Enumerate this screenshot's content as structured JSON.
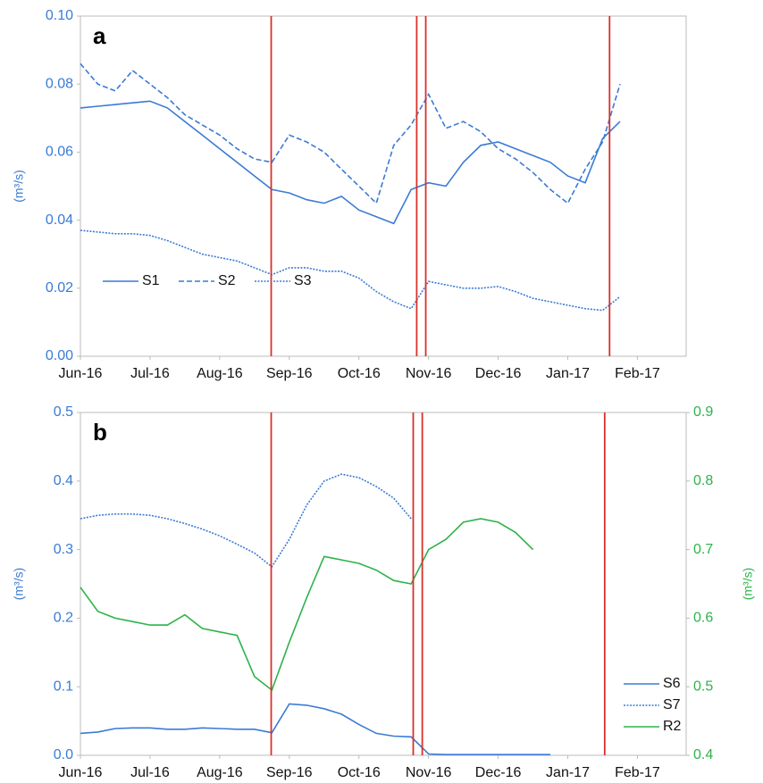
{
  "chart_data": [
    {
      "type": "line",
      "panel_label": "a",
      "ylabel": "(m³/s)",
      "xlim": [
        0,
        8.7
      ],
      "xticks": [
        {
          "value": 0,
          "label": "Jun-16"
        },
        {
          "value": 1,
          "label": "Jul-16"
        },
        {
          "value": 2,
          "label": "Aug-16"
        },
        {
          "value": 3,
          "label": "Sep-16"
        },
        {
          "value": 4,
          "label": "Oct-16"
        },
        {
          "value": 5,
          "label": "Nov-16"
        },
        {
          "value": 6,
          "label": "Dec-16"
        },
        {
          "value": 7,
          "label": "Jan-17"
        },
        {
          "value": 8,
          "label": "Feb-17"
        }
      ],
      "ylim": [
        0,
        0.1
      ],
      "yticks": [
        {
          "value": 0,
          "label": "0.00"
        },
        {
          "value": 0.02,
          "label": "0.02"
        },
        {
          "value": 0.04,
          "label": "0.04"
        },
        {
          "value": 0.06,
          "label": "0.06"
        },
        {
          "value": 0.08,
          "label": "0.08"
        },
        {
          "value": 0.1,
          "label": "0.10"
        }
      ],
      "vlines": [
        2.74,
        4.83,
        4.96,
        7.6
      ],
      "vline_color": "#d9312b",
      "legend": "left",
      "x": [
        0,
        0.25,
        0.5,
        0.75,
        1,
        1.25,
        1.5,
        1.75,
        2,
        2.25,
        2.5,
        2.75,
        3,
        3.25,
        3.5,
        3.75,
        4,
        4.25,
        4.5,
        4.75,
        5,
        5.25,
        5.5,
        5.75,
        6,
        6.25,
        6.5,
        6.75,
        7,
        7.25,
        7.5,
        7.75
      ],
      "series": [
        {
          "name": "S1",
          "color": "#3a7bd5",
          "linestyle": "solid",
          "values": [
            0.073,
            0.0735,
            0.074,
            0.0745,
            0.075,
            0.073,
            0.069,
            0.065,
            0.061,
            0.057,
            0.053,
            0.049,
            0.048,
            0.046,
            0.045,
            0.047,
            0.043,
            0.041,
            0.039,
            0.049,
            0.051,
            0.05,
            0.057,
            0.062,
            0.063,
            0.061,
            0.059,
            0.057,
            0.053,
            0.051,
            0.064,
            0.069
          ]
        },
        {
          "name": "S2",
          "color": "#3a7bd5",
          "linestyle": "dashed",
          "values": [
            0.086,
            0.08,
            0.078,
            0.084,
            0.08,
            0.076,
            0.071,
            0.068,
            0.065,
            0.061,
            0.058,
            0.057,
            0.065,
            0.063,
            0.06,
            0.055,
            0.05,
            0.045,
            0.062,
            0.068,
            0.077,
            0.067,
            0.069,
            0.066,
            0.061,
            0.058,
            0.054,
            0.049,
            0.045,
            0.055,
            0.063,
            0.08
          ]
        },
        {
          "name": "S3",
          "color": "#3a7bd5",
          "linestyle": "dotted",
          "values": [
            0.037,
            0.0365,
            0.036,
            0.036,
            0.0355,
            0.034,
            0.032,
            0.03,
            0.029,
            0.028,
            0.026,
            0.024,
            0.026,
            0.026,
            0.025,
            0.025,
            0.023,
            0.019,
            0.016,
            0.014,
            0.022,
            0.021,
            0.02,
            0.02,
            0.0205,
            0.019,
            0.017,
            0.016,
            0.015,
            0.014,
            0.0135,
            0.0175
          ]
        }
      ]
    },
    {
      "type": "line",
      "panel_label": "b",
      "ylabel": "(m³/s)",
      "y2label": "(m³/s)",
      "xlim": [
        0,
        8.7
      ],
      "xticks": [
        {
          "value": 0,
          "label": "Jun-16"
        },
        {
          "value": 1,
          "label": "Jul-16"
        },
        {
          "value": 2,
          "label": "Aug-16"
        },
        {
          "value": 3,
          "label": "Sep-16"
        },
        {
          "value": 4,
          "label": "Oct-16"
        },
        {
          "value": 5,
          "label": "Nov-16"
        },
        {
          "value": 6,
          "label": "Dec-16"
        },
        {
          "value": 7,
          "label": "Jan-17"
        },
        {
          "value": 8,
          "label": "Feb-17"
        }
      ],
      "ylim": [
        0,
        0.5
      ],
      "yticks": [
        {
          "value": 0,
          "label": "0.0"
        },
        {
          "value": 0.1,
          "label": "0.1"
        },
        {
          "value": 0.2,
          "label": "0.2"
        },
        {
          "value": 0.3,
          "label": "0.3"
        },
        {
          "value": 0.4,
          "label": "0.4"
        },
        {
          "value": 0.5,
          "label": "0.5"
        }
      ],
      "y2lim": [
        0.4,
        0.9
      ],
      "y2ticks": [
        0.4,
        0.5,
        0.6,
        0.7,
        0.8,
        0.9
      ],
      "y2color": "#2db34a",
      "vlines": [
        2.74,
        4.78,
        4.91,
        7.53
      ],
      "vline_color": "#d9312b",
      "legend": "lower right",
      "x": [
        0,
        0.25,
        0.5,
        0.75,
        1,
        1.25,
        1.5,
        1.75,
        2,
        2.25,
        2.5,
        2.75,
        3,
        3.25,
        3.5,
        3.75,
        4,
        4.25,
        4.5,
        4.75,
        5,
        5.25,
        5.5,
        5.75,
        6,
        6.25,
        6.5,
        6.75
      ],
      "series": [
        {
          "name": "S6",
          "color": "#3a7bd5",
          "linestyle": "solid",
          "values": [
            0.032,
            0.034,
            0.039,
            0.04,
            0.04,
            0.038,
            0.038,
            0.04,
            0.039,
            0.038,
            0.038,
            0.033,
            0.075,
            0.073,
            0.068,
            0.06,
            0.045,
            0.032,
            0.028,
            0.027,
            0.002,
            0.001,
            0.001,
            0.001,
            0.001,
            0.001,
            0.001,
            0.001
          ]
        },
        {
          "name": "S7",
          "color": "#3a7bd5",
          "linestyle": "dotted",
          "values": [
            0.345,
            0.35,
            0.352,
            0.352,
            0.35,
            0.345,
            0.338,
            0.33,
            0.32,
            0.308,
            0.295,
            0.275,
            0.315,
            0.365,
            0.4,
            0.41,
            0.405,
            0.392,
            0.375,
            0.345,
            null,
            null,
            null,
            null,
            null,
            null,
            null,
            null
          ]
        },
        {
          "name": "R2",
          "color": "#2db34a",
          "linestyle": "solid",
          "axis": "y2",
          "values": [
            0.645,
            0.61,
            0.6,
            0.595,
            0.59,
            0.59,
            0.605,
            0.585,
            0.58,
            0.575,
            0.515,
            0.495,
            0.565,
            0.63,
            0.69,
            0.685,
            0.68,
            0.67,
            0.655,
            0.65,
            0.7,
            0.715,
            0.74,
            0.745,
            0.74,
            0.725,
            0.7,
            null
          ]
        }
      ]
    }
  ]
}
